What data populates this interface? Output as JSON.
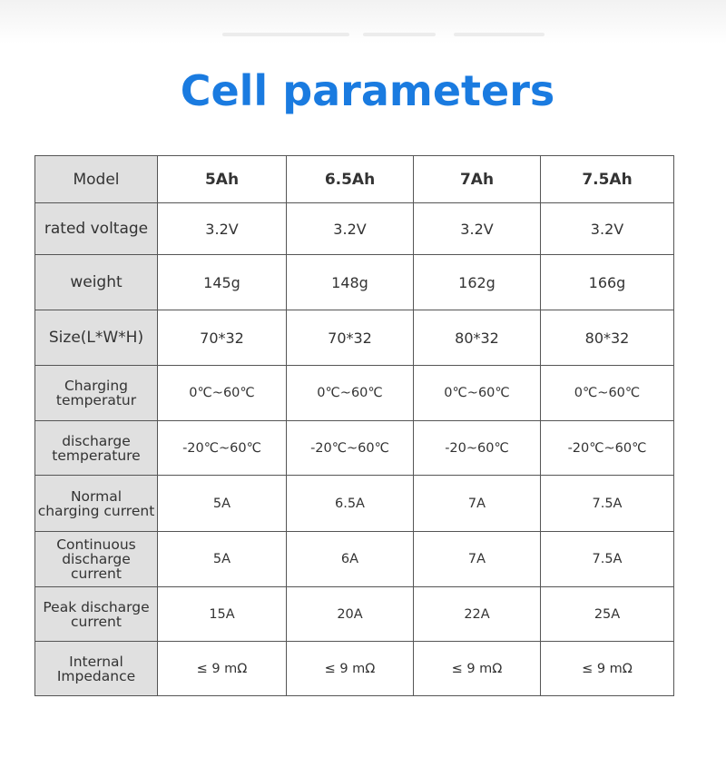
{
  "title": "Cell parameters",
  "table": {
    "header": {
      "label": "Model",
      "columns": [
        "5Ah",
        "6.5Ah",
        "7Ah",
        "7.5Ah"
      ]
    },
    "rows": [
      {
        "label": [
          "rated voltage"
        ],
        "values": [
          "3.2V",
          "3.2V",
          "3.2V",
          "3.2V"
        ]
      },
      {
        "label": [
          "weight"
        ],
        "values": [
          "145g",
          "148g",
          "162g",
          "166g"
        ]
      },
      {
        "label": [
          "Size(L*W*H)"
        ],
        "values": [
          "70*32",
          "70*32",
          "80*32",
          "80*32"
        ]
      },
      {
        "label": [
          "Charging",
          "temperatur"
        ],
        "values": [
          "0℃~60℃",
          "0℃~60℃",
          "0℃~60℃",
          "0℃~60℃"
        ]
      },
      {
        "label": [
          "discharge",
          "temperature"
        ],
        "values": [
          "-20℃~60℃",
          "-20℃~60℃",
          "-20~60℃",
          "-20℃~60℃"
        ]
      },
      {
        "label": [
          "Normal",
          "charging current"
        ],
        "values": [
          "5A",
          "6.5A",
          "7A",
          "7.5A"
        ]
      },
      {
        "label": [
          "Continuous",
          "discharge current"
        ],
        "values": [
          "5A",
          "6A",
          "7A",
          "7.5A"
        ]
      },
      {
        "label": [
          "Peak discharge",
          "current"
        ],
        "values": [
          "15A",
          "20A",
          "22A",
          "25A"
        ]
      },
      {
        "label": [
          "Internal",
          "Impedance"
        ],
        "values": [
          "≤ 9 mΩ",
          "≤ 9 mΩ",
          "≤ 9 mΩ",
          "≤ 9 mΩ"
        ]
      }
    ]
  }
}
